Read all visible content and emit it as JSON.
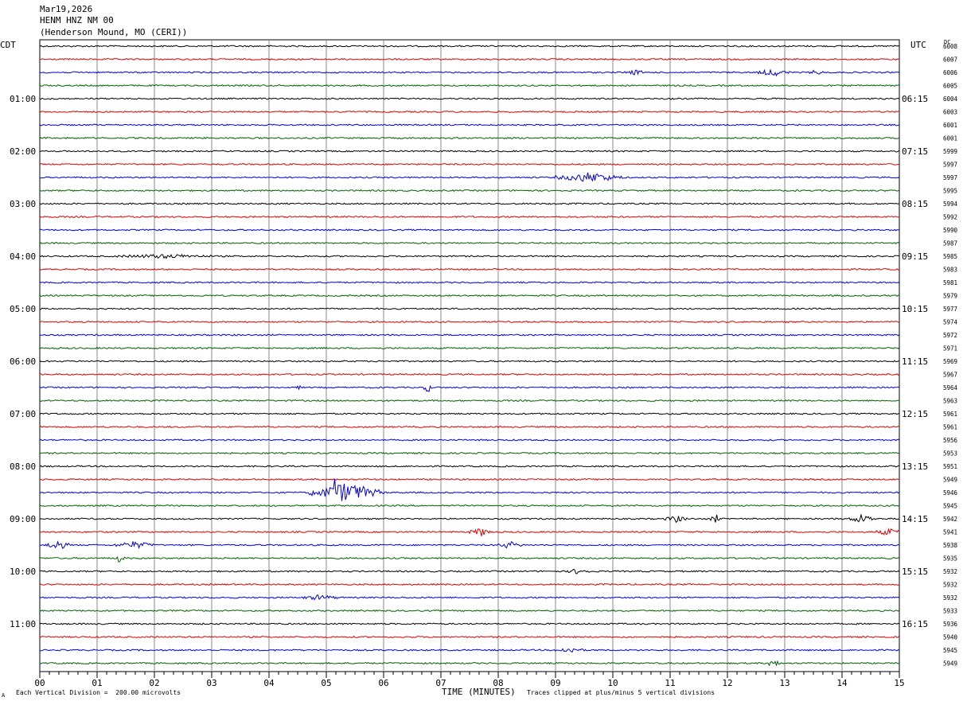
{
  "header": {
    "date": "Mar19,2026",
    "station": "HENM HNZ NM 00",
    "location": "(Henderson Mound, MO (CERI))"
  },
  "timezones": {
    "left": "CDT",
    "right": "UTC",
    "dc": "DC"
  },
  "footer": {
    "scale": "Each Vertical Division =  200.00 microvolts",
    "clip": "Traces clipped at plus/minus 5 vertical divisions",
    "mark": "A"
  },
  "colors": {
    "trace_cycle": [
      "#000000",
      "#e00000",
      "#0000e0",
      "#006000"
    ],
    "grid": "#888888"
  },
  "chart_data": {
    "type": "line",
    "title": "",
    "xlabel": "TIME (MINUTES)",
    "xlim": [
      0,
      15
    ],
    "x_ticks": [
      "00",
      "01",
      "02",
      "03",
      "04",
      "05",
      "06",
      "07",
      "08",
      "09",
      "10",
      "11",
      "12",
      "13",
      "14",
      "15"
    ],
    "rows_count": 48,
    "left_hour_labels": [
      "01:00",
      "02:00",
      "03:00",
      "04:00",
      "05:00",
      "06:00",
      "07:00",
      "08:00",
      "09:00",
      "10:00",
      "11:00"
    ],
    "right_hour_labels": [
      "06:15",
      "07:15",
      "08:15",
      "09:15",
      "10:15",
      "11:15",
      "12:15",
      "13:15",
      "14:15",
      "15:15",
      "16:15"
    ],
    "dc_offsets": [
      6008,
      6007,
      6006,
      6005,
      6004,
      6003,
      6001,
      6001,
      5999,
      5997,
      5997,
      5995,
      5994,
      5992,
      5990,
      5987,
      5985,
      5983,
      5981,
      5979,
      5977,
      5974,
      5972,
      5971,
      5969,
      5967,
      5964,
      5963,
      5961,
      5961,
      5956,
      5953,
      5951,
      5949,
      5946,
      5945,
      5942,
      5941,
      5938,
      5935,
      5932,
      5932,
      5932,
      5933,
      5936,
      5940,
      5945,
      5949
    ],
    "events": [
      {
        "row": 2,
        "start_min": 10.2,
        "end_min": 10.6,
        "amp": 2.5
      },
      {
        "row": 2,
        "start_min": 12.5,
        "end_min": 13.1,
        "amp": 4
      },
      {
        "row": 2,
        "start_min": 13.4,
        "end_min": 13.7,
        "amp": 2.5
      },
      {
        "row": 10,
        "start_min": 9.0,
        "end_min": 10.2,
        "amp": 6
      },
      {
        "row": 16,
        "start_min": 1.3,
        "end_min": 3.0,
        "amp": 2
      },
      {
        "row": 26,
        "start_min": 4.5,
        "end_min": 4.55,
        "amp": 4
      },
      {
        "row": 26,
        "start_min": 6.7,
        "end_min": 6.85,
        "amp": 6
      },
      {
        "row": 34,
        "start_min": 4.7,
        "end_min": 6.0,
        "amp": 12
      },
      {
        "row": 34,
        "start_min": 5.12,
        "end_min": 5.18,
        "amp": 38
      },
      {
        "row": 36,
        "start_min": 10.9,
        "end_min": 11.3,
        "amp": 4
      },
      {
        "row": 36,
        "start_min": 11.7,
        "end_min": 11.9,
        "amp": 5
      },
      {
        "row": 36,
        "start_min": 14.1,
        "end_min": 14.6,
        "amp": 5
      },
      {
        "row": 37,
        "start_min": 7.5,
        "end_min": 7.9,
        "amp": 5
      },
      {
        "row": 37,
        "start_min": 14.6,
        "end_min": 15.0,
        "amp": 4
      },
      {
        "row": 38,
        "start_min": 0.1,
        "end_min": 0.5,
        "amp": 6
      },
      {
        "row": 38,
        "start_min": 1.3,
        "end_min": 2.0,
        "amp": 4
      },
      {
        "row": 38,
        "start_min": 8.0,
        "end_min": 8.4,
        "amp": 4
      },
      {
        "row": 39,
        "start_min": 1.3,
        "end_min": 1.5,
        "amp": 5
      },
      {
        "row": 40,
        "start_min": 9.2,
        "end_min": 9.6,
        "amp": 3
      },
      {
        "row": 42,
        "start_min": 4.6,
        "end_min": 5.2,
        "amp": 3
      },
      {
        "row": 46,
        "start_min": 9.0,
        "end_min": 9.5,
        "amp": 3
      },
      {
        "row": 47,
        "start_min": 12.7,
        "end_min": 12.9,
        "amp": 8
      }
    ]
  }
}
